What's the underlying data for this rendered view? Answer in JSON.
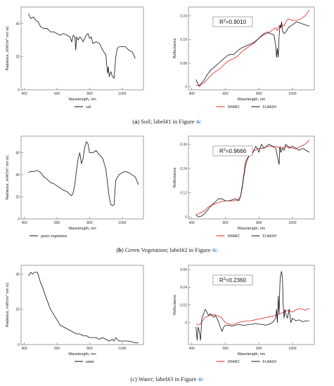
{
  "captions": [
    {
      "letter": "a",
      "text": " Soil; label#1 in Figure ",
      "ref": "4c"
    },
    {
      "letter": "b",
      "text": " Green Vegetation; label#2 in Figure ",
      "ref": "4c"
    },
    {
      "letter": "c",
      "text": " Water; label#3 in Figure ",
      "ref": "4c"
    }
  ],
  "chart_data": [
    {
      "type": "line",
      "panel": "a-radiance",
      "xlabel": "Wavelength, nm",
      "ylabel": "Radiance, mW/(m² nm sr)",
      "xlim": [
        380,
        1130
      ],
      "ylim": [
        0,
        50
      ],
      "xticks": [
        400,
        600,
        800,
        1000
      ],
      "yticks": [
        0,
        20,
        40
      ],
      "legend_position": "bottom-center",
      "series": [
        {
          "name": "soil",
          "color": "#111111",
          "x": [
            425,
            440,
            455,
            470,
            485,
            500,
            520,
            540,
            560,
            580,
            600,
            620,
            640,
            660,
            680,
            690,
            700,
            710,
            715,
            720,
            730,
            740,
            750,
            760,
            780,
            790,
            800,
            810,
            820,
            840,
            860,
            880,
            900,
            905,
            910,
            915,
            920,
            930,
            940,
            950,
            960,
            970,
            980,
            1000,
            1020,
            1040,
            1060,
            1080
          ],
          "y": [
            46,
            43,
            44,
            42,
            41,
            38,
            37,
            37,
            35,
            35,
            34,
            33,
            34,
            33,
            32,
            29,
            33,
            32,
            24,
            32,
            30,
            32,
            31,
            29,
            33,
            34,
            31,
            32,
            28,
            29,
            28,
            24,
            21,
            15,
            10,
            14,
            8,
            11,
            8,
            7,
            20,
            25,
            26,
            26,
            26,
            24,
            23,
            19
          ]
        }
      ]
    },
    {
      "type": "line",
      "panel": "a-reflectance",
      "xlabel": "Wavelength, nm",
      "ylabel": "Reflectance",
      "xlim": [
        380,
        1130
      ],
      "ylim": [
        -0.01,
        0.27
      ],
      "xticks": [
        400,
        600,
        800,
        1000
      ],
      "yticks": [
        0,
        0.08,
        0.16,
        0.24
      ],
      "annotation": "R²=0.9010",
      "legend_position": "bottom-center",
      "series": [
        {
          "name": "SHARC",
          "color": "#e02020",
          "x": [
            425,
            450,
            475,
            500,
            525,
            550,
            575,
            600,
            625,
            650,
            675,
            700,
            725,
            750,
            775,
            800,
            825,
            850,
            875,
            900,
            910,
            920,
            930,
            940,
            950,
            960,
            975,
            1000,
            1025,
            1050,
            1075,
            1100
          ],
          "y": [
            0.005,
            0.005,
            0.015,
            0.03,
            0.045,
            0.055,
            0.065,
            0.08,
            0.09,
            0.095,
            0.105,
            0.12,
            0.13,
            0.14,
            0.15,
            0.165,
            0.175,
            0.18,
            0.19,
            0.2,
            0.19,
            0.205,
            0.2,
            0.21,
            0.205,
            0.22,
            0.23,
            0.225,
            0.225,
            0.23,
            0.24,
            0.26
          ]
        },
        {
          "name": "FLAASH",
          "color": "#111111",
          "x": [
            425,
            435,
            445,
            455,
            470,
            490,
            510,
            530,
            550,
            570,
            590,
            610,
            630,
            650,
            670,
            690,
            710,
            730,
            750,
            770,
            790,
            810,
            830,
            850,
            870,
            890,
            900,
            905,
            910,
            915,
            920,
            925,
            930,
            935,
            940,
            950,
            960,
            975,
            1000,
            1025,
            1050,
            1075,
            1100
          ],
          "y": [
            0.025,
            0.012,
            0.002,
            0.012,
            0.02,
            0.04,
            0.055,
            0.065,
            0.075,
            0.085,
            0.095,
            0.105,
            0.11,
            0.11,
            0.12,
            0.13,
            0.135,
            0.14,
            0.145,
            0.15,
            0.16,
            0.17,
            0.18,
            0.185,
            0.18,
            0.175,
            0.14,
            0.1,
            0.13,
            0.1,
            0.17,
            0.21,
            0.2,
            0.22,
            0.19,
            0.18,
            0.185,
            0.2,
            0.21,
            0.22,
            0.215,
            0.21,
            0.205
          ]
        }
      ]
    },
    {
      "type": "line",
      "panel": "b-radiance",
      "xlabel": "Wavelength, nm",
      "ylabel": "Radiance, mW/(m² nm sr)",
      "xlim": [
        380,
        1130
      ],
      "ylim": [
        0,
        75
      ],
      "xticks": [
        400,
        600,
        800,
        1000
      ],
      "yticks": [
        0,
        20,
        40,
        60
      ],
      "legend_position": "bottom-left",
      "series": [
        {
          "name": "green vegetation",
          "color": "#111111",
          "x": [
            425,
            440,
            460,
            480,
            500,
            520,
            540,
            560,
            580,
            600,
            620,
            640,
            660,
            680,
            690,
            700,
            710,
            720,
            730,
            740,
            750,
            760,
            770,
            780,
            790,
            800,
            820,
            840,
            860,
            880,
            900,
            910,
            920,
            930,
            940,
            950,
            960,
            980,
            1000,
            1020,
            1040,
            1060,
            1080,
            1100
          ],
          "y": [
            42,
            43,
            43,
            44,
            42,
            38,
            36,
            33,
            32,
            30,
            28,
            26,
            25,
            22,
            21,
            24,
            32,
            45,
            55,
            60,
            50,
            55,
            65,
            70,
            68,
            60,
            60,
            62,
            58,
            55,
            45,
            32,
            20,
            13,
            12,
            13,
            35,
            40,
            42,
            43,
            42,
            40,
            38,
            31
          ]
        }
      ]
    },
    {
      "type": "line",
      "panel": "b-reflectance",
      "xlabel": "Wavelength, nm",
      "ylabel": "Reflectance",
      "xlim": [
        380,
        1130
      ],
      "ylim": [
        -0.01,
        0.4
      ],
      "xticks": [
        400,
        600,
        800,
        1000
      ],
      "yticks": [
        0,
        0.12,
        0.24,
        0.36
      ],
      "annotation": "R²=0.9666",
      "legend_position": "bottom-center",
      "series": [
        {
          "name": "SHARC",
          "color": "#e02020",
          "x": [
            425,
            450,
            475,
            500,
            525,
            550,
            575,
            600,
            625,
            650,
            675,
            690,
            700,
            710,
            720,
            730,
            740,
            750,
            775,
            800,
            825,
            850,
            875,
            900,
            925,
            950,
            975,
            1000,
            1025,
            1050,
            1075,
            1100
          ],
          "y": [
            0.01,
            0.02,
            0.03,
            0.05,
            0.06,
            0.07,
            0.075,
            0.08,
            0.08,
            0.08,
            0.085,
            0.1,
            0.14,
            0.2,
            0.25,
            0.28,
            0.3,
            0.31,
            0.33,
            0.34,
            0.34,
            0.35,
            0.35,
            0.35,
            0.34,
            0.345,
            0.35,
            0.34,
            0.34,
            0.35,
            0.36,
            0.38
          ]
        },
        {
          "name": "FLAASH",
          "color": "#111111",
          "x": [
            425,
            440,
            460,
            480,
            500,
            520,
            540,
            560,
            580,
            600,
            620,
            640,
            660,
            680,
            690,
            700,
            710,
            720,
            730,
            740,
            750,
            760,
            770,
            780,
            790,
            800,
            815,
            830,
            845,
            860,
            880,
            900,
            910,
            920,
            925,
            930,
            940,
            950,
            960,
            980,
            1000,
            1020,
            1040,
            1060,
            1080,
            1100
          ],
          "y": [
            0.01,
            0.0,
            0.005,
            0.02,
            0.04,
            0.06,
            0.075,
            0.09,
            0.09,
            0.08,
            0.08,
            0.085,
            0.09,
            0.08,
            0.1,
            0.15,
            0.21,
            0.27,
            0.29,
            0.3,
            0.32,
            0.31,
            0.33,
            0.35,
            0.34,
            0.32,
            0.36,
            0.34,
            0.35,
            0.36,
            0.35,
            0.34,
            0.3,
            0.26,
            0.35,
            0.32,
            0.34,
            0.33,
            0.36,
            0.34,
            0.35,
            0.34,
            0.33,
            0.34,
            0.33,
            0.32
          ]
        }
      ]
    },
    {
      "type": "line",
      "panel": "c-radiance",
      "xlabel": "Wavelength, nm",
      "ylabel": "Radiance, mW/(m² nm sr)",
      "xlim": [
        380,
        1130
      ],
      "ylim": [
        0,
        45
      ],
      "xticks": [
        400,
        600,
        800,
        1000
      ],
      "yticks": [
        0,
        20,
        40
      ],
      "legend_position": "bottom-center",
      "series": [
        {
          "name": "water",
          "color": "#111111",
          "x": [
            425,
            440,
            450,
            460,
            470,
            480,
            490,
            500,
            510,
            520,
            540,
            560,
            580,
            600,
            620,
            640,
            660,
            680,
            700,
            720,
            740,
            760,
            780,
            800,
            820,
            840,
            860,
            880,
            900,
            920,
            940,
            950,
            960,
            980,
            1000,
            1020,
            1040,
            1060,
            1080,
            1100
          ],
          "y": [
            39,
            41,
            40,
            41,
            41,
            41,
            38,
            35,
            33,
            30,
            25,
            20,
            17,
            14,
            11,
            10,
            9,
            8,
            7,
            6,
            6,
            5,
            5,
            4,
            4,
            4,
            3,
            4,
            3,
            2,
            3,
            2,
            4,
            2,
            2,
            2,
            2,
            1.5,
            1,
            1
          ]
        }
      ]
    },
    {
      "type": "line",
      "panel": "c-reflectance",
      "xlabel": "Wavelength, nm",
      "ylabel": "Reflectance",
      "xlim": [
        380,
        1130
      ],
      "ylim": [
        -0.025,
        0.065
      ],
      "xticks": [
        400,
        600,
        800,
        1000
      ],
      "yticks": [
        0,
        0.02,
        0.04,
        0.06
      ],
      "annotation": "R²=0.2360",
      "legend_position": "bottom-center",
      "series": [
        {
          "name": "SHARC",
          "color": "#e02020",
          "x": [
            425,
            450,
            475,
            500,
            525,
            550,
            575,
            600,
            625,
            650,
            675,
            700,
            725,
            750,
            775,
            800,
            825,
            850,
            875,
            900,
            925,
            950,
            975,
            1000,
            1025,
            1050,
            1075,
            1100
          ],
          "y": [
            -0.002,
            -0.002,
            0.005,
            0.008,
            0.009,
            0.008,
            0.006,
            0.0,
            -0.002,
            -0.002,
            0.0,
            0.001,
            0.002,
            0.002,
            0.003,
            0.004,
            0.005,
            0.006,
            0.007,
            0.008,
            0.01,
            0.012,
            0.014,
            0.012,
            0.015,
            0.016,
            0.014,
            0.016
          ]
        },
        {
          "name": "FLAASH",
          "color": "#111111",
          "x": [
            425,
            432,
            438,
            445,
            452,
            460,
            470,
            480,
            490,
            500,
            510,
            520,
            530,
            540,
            550,
            560,
            570,
            580,
            590,
            600,
            620,
            640,
            660,
            680,
            700,
            720,
            740,
            760,
            780,
            800,
            820,
            840,
            860,
            880,
            890,
            900,
            905,
            910,
            915,
            920,
            925,
            930,
            935,
            940,
            945,
            950,
            955,
            960,
            970,
            980,
            990,
            1000,
            1020,
            1040,
            1060,
            1080,
            1100
          ],
          "y": [
            -0.005,
            -0.02,
            -0.005,
            -0.01,
            -0.02,
            0.005,
            0.01,
            0.015,
            0.012,
            0.008,
            0.01,
            0.008,
            0.006,
            0.008,
            0.005,
            0.0,
            -0.005,
            -0.01,
            -0.005,
            -0.003,
            -0.003,
            -0.004,
            -0.003,
            -0.002,
            -0.003,
            -0.003,
            -0.002,
            -0.002,
            -0.001,
            -0.002,
            -0.002,
            -0.003,
            -0.002,
            0.0,
            0.002,
            0.005,
            0.015,
            0.0,
            0.03,
            0.01,
            0.045,
            0.055,
            0.058,
            0.05,
            0.02,
            0.005,
            0.015,
            0.01,
            0.005,
            0.015,
            0.0,
            0.005,
            0.002,
            0.003,
            0.001,
            0.002,
            0.002
          ]
        }
      ]
    }
  ]
}
